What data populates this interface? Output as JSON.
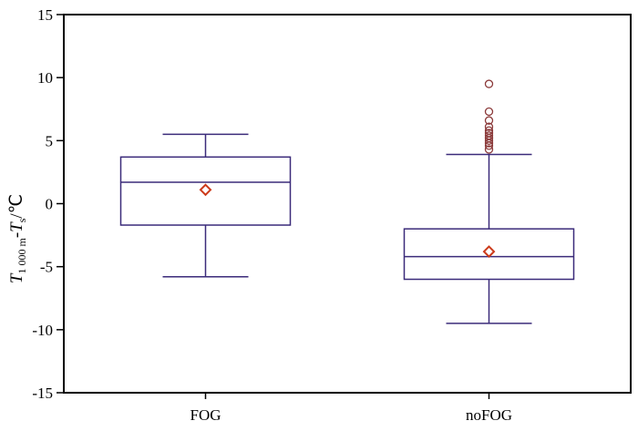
{
  "chart_data": {
    "type": "box",
    "categories": [
      "FOG",
      "noFOG"
    ],
    "ylim": [
      -15,
      15
    ],
    "yticks": [
      -15,
      -10,
      -5,
      0,
      5,
      10,
      15
    ],
    "ytick_labels": [
      "-15",
      "-10",
      "-5",
      "0",
      "5",
      "10",
      "15"
    ],
    "ylabel": {
      "T1": "T",
      "sub1": "1 000 m",
      "dash": "-",
      "T2": "T",
      "sub2": "s",
      "unit": "/℃"
    },
    "boxes": [
      {
        "name": "FOG",
        "whisker_low": -5.8,
        "q1": -1.7,
        "median": 1.7,
        "q3": 3.7,
        "whisker_high": 5.5,
        "mean": 1.1,
        "outliers": []
      },
      {
        "name": "noFOG",
        "whisker_low": -9.5,
        "q1": -6.0,
        "median": -4.2,
        "q3": -2.0,
        "whisker_high": 3.9,
        "mean": -3.8,
        "outliers": [
          4.3,
          4.6,
          4.8,
          5.0,
          5.2,
          5.4,
          5.6,
          5.8,
          6.1,
          6.6,
          7.3,
          9.5
        ]
      }
    ],
    "colors": {
      "box": "#3b2b7a",
      "mean": "#cc3a1a",
      "outlier": "#8b3a3a",
      "axis": "#000000"
    }
  }
}
